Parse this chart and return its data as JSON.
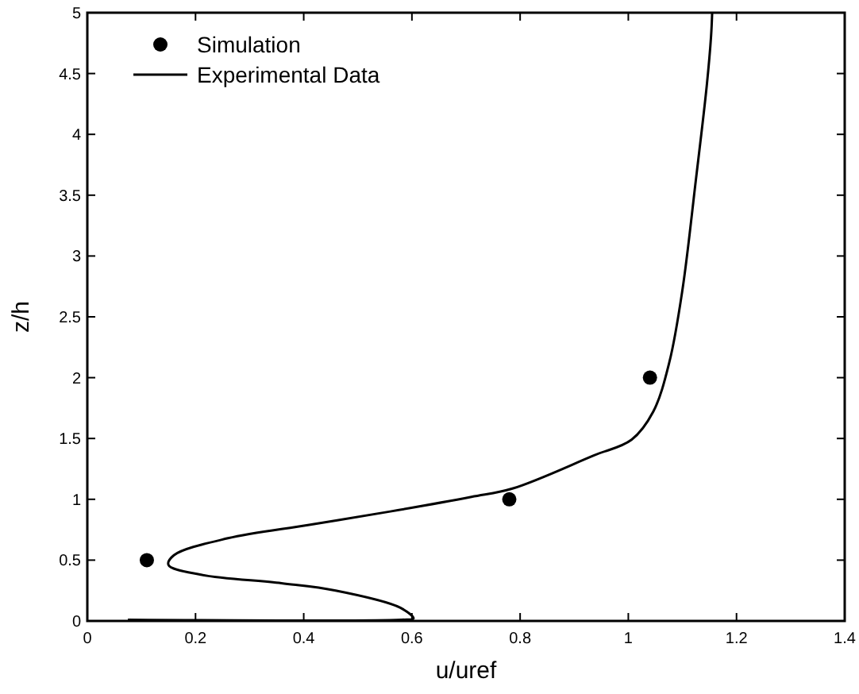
{
  "chart_data": {
    "type": "line",
    "xlabel": "u/uref",
    "ylabel": "z/h",
    "xlim": [
      0,
      1.4
    ],
    "ylim": [
      0,
      5
    ],
    "xticks": [
      0,
      0.2,
      0.4,
      0.6,
      0.8,
      1,
      1.2,
      1.4
    ],
    "yticks": [
      0,
      0.5,
      1,
      1.5,
      2,
      2.5,
      3,
      3.5,
      4,
      4.5,
      5
    ],
    "legend": "top left",
    "grid": false,
    "series": [
      {
        "name": "Simulation",
        "type": "scatter",
        "marker": "circle",
        "color": "#000000",
        "x": [
          0.11,
          0.78,
          1.04
        ],
        "values": [
          0.5,
          1.0,
          2.0
        ]
      },
      {
        "name": "Experimental Data",
        "line_style": "solid",
        "color": "#000000",
        "x": [
          0.075,
          0.58,
          0.603,
          0.578,
          0.459,
          0.359,
          0.21,
          0.15,
          0.16,
          0.26,
          0.41,
          0.56,
          0.71,
          0.787,
          0.936,
          1.006,
          1.046,
          1.076,
          1.1,
          1.125,
          1.145,
          1.153,
          1.155
        ],
        "values": [
          0.01,
          0.01,
          0.02,
          0.11,
          0.25,
          0.31,
          0.38,
          0.46,
          0.54,
          0.68,
          0.79,
          0.9,
          1.02,
          1.09,
          1.36,
          1.49,
          1.72,
          2.13,
          2.72,
          3.63,
          4.4,
          4.81,
          5.0
        ]
      }
    ]
  }
}
